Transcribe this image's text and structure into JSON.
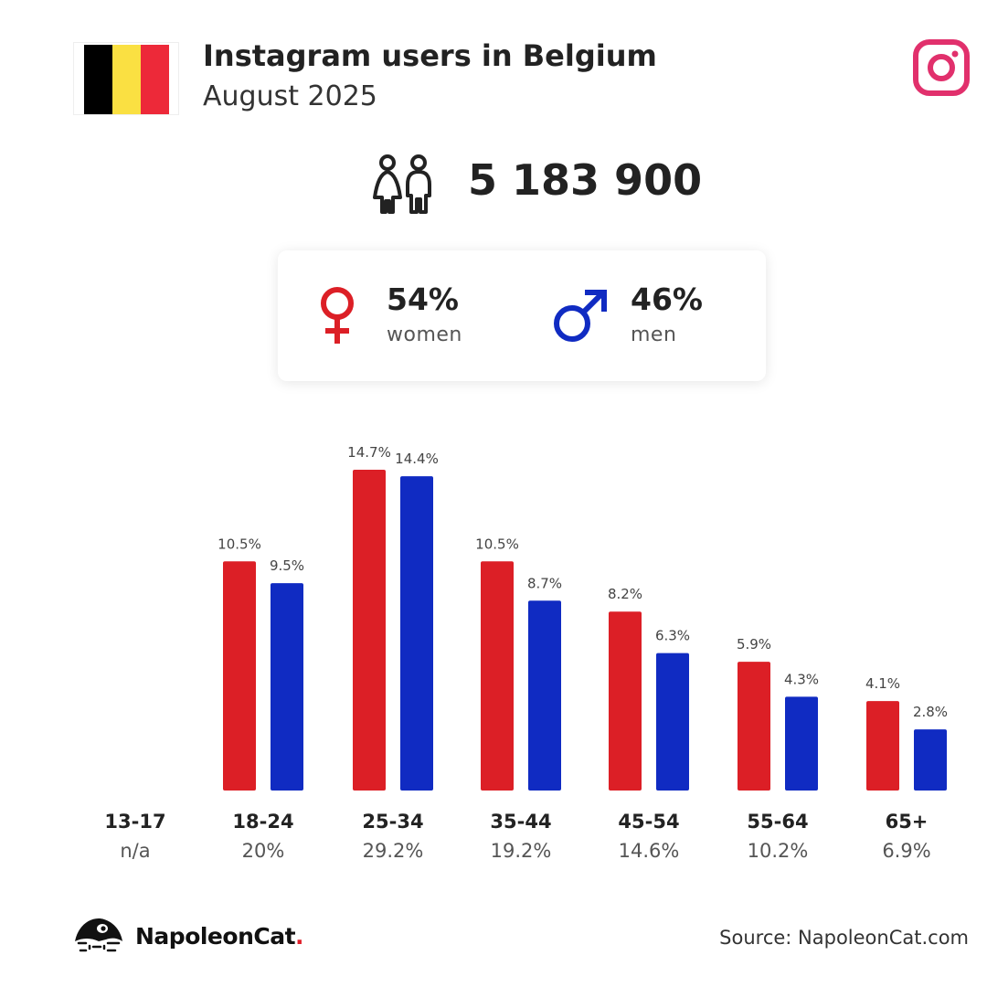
{
  "header": {
    "title": "Instagram users in Belgium",
    "subtitle": "August 2025",
    "flag_colors": [
      "#000000",
      "#fae042",
      "#ed2939"
    ],
    "brand_icon": "instagram-icon",
    "brand_icon_color": "#e1306c"
  },
  "total": {
    "icon": "people-icon",
    "value": "5 183 900"
  },
  "gender": {
    "female": {
      "icon": "female-icon",
      "pct": "54%",
      "label": "women",
      "color": "#dc1f26"
    },
    "male": {
      "icon": "male-icon",
      "pct": "46%",
      "label": "men",
      "color": "#102bc2"
    }
  },
  "chart_data": {
    "type": "bar",
    "categories": [
      "13-17",
      "18-24",
      "25-34",
      "35-44",
      "45-54",
      "55-64",
      "65+"
    ],
    "category_totals": [
      "n/a",
      "20%",
      "29.2%",
      "19.2%",
      "14.6%",
      "10.2%",
      "6.9%"
    ],
    "series": [
      {
        "name": "women",
        "color": "#dc1f26",
        "values": [
          null,
          10.5,
          14.7,
          10.5,
          8.2,
          5.9,
          4.1
        ],
        "labels": [
          "",
          "10.5%",
          "14.7%",
          "10.5%",
          "8.2%",
          "5.9%",
          "4.1%"
        ]
      },
      {
        "name": "men",
        "color": "#102bc2",
        "values": [
          null,
          9.5,
          14.4,
          8.7,
          6.3,
          4.3,
          2.8
        ],
        "labels": [
          "",
          "9.5%",
          "14.4%",
          "8.7%",
          "6.3%",
          "4.3%",
          "2.8%"
        ]
      }
    ],
    "ylim": [
      0,
      14.7
    ],
    "grid": false,
    "legend": "none"
  },
  "footer": {
    "brand": "NapoleonCat",
    "brand_dot": ".",
    "source": "Source: NapoleonCat.com"
  }
}
